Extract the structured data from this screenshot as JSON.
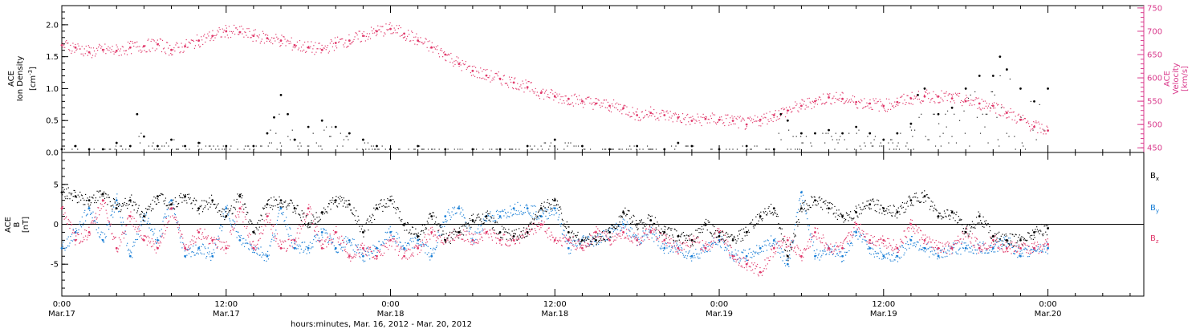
{
  "colors": {
    "black": "#000000",
    "density": "#000000",
    "velocity": "#e0386a",
    "bx": "#000000",
    "by": "#1a7fd6",
    "bz": "#e0386a",
    "right_axis": "#d93a8c"
  },
  "xaxis": {
    "title": "hours:minutes, Mar. 16, 2012 - Mar. 20, 2012",
    "ticks": [
      {
        "hour": 0,
        "time": "0:00",
        "date": "Mar.17"
      },
      {
        "hour": 12,
        "time": "12:00",
        "date": "Mar.17"
      },
      {
        "hour": 24,
        "time": "0:00",
        "date": "Mar.18"
      },
      {
        "hour": 36,
        "time": "12:00",
        "date": "Mar.18"
      },
      {
        "hour": 48,
        "time": "0:00",
        "date": "Mar.19"
      },
      {
        "hour": 60,
        "time": "12:00",
        "date": "Mar.19"
      },
      {
        "hour": 72,
        "time": "0:00",
        "date": "Mar.20"
      }
    ]
  },
  "chart_data": [
    {
      "type": "scatter",
      "panel": "plasma",
      "x_unit": "hours since Mar.17 0:00",
      "xlim": [
        0,
        79
      ],
      "left_axis": {
        "label_lines": [
          "ACE",
          "Ion Density"
        ],
        "unit_base": "[cm",
        "unit_sup": "-3",
        "unit_end": "]",
        "ylim": [
          0,
          2.3
        ],
        "ticks": [
          "0.0",
          "0.5",
          "1.0",
          "1.5",
          "2.0"
        ]
      },
      "right_axis": {
        "label_lines": [
          "ACE",
          "Velocity",
          "[km/s]"
        ],
        "ylim": [
          440,
          755
        ],
        "ticks": [
          "450",
          "500",
          "550",
          "600",
          "650",
          "700",
          "750"
        ]
      },
      "series": [
        {
          "key": "density",
          "axis": "left",
          "x": [
            0,
            1,
            2,
            3,
            4,
            5,
            5.5,
            6,
            7,
            8,
            9,
            10,
            12,
            14,
            15,
            15.5,
            16,
            16.5,
            17,
            18,
            19,
            20,
            21,
            22,
            23,
            24,
            26,
            28,
            30,
            32,
            34,
            36,
            38,
            40,
            42,
            44,
            45,
            46,
            48,
            50,
            52,
            52.5,
            53,
            54,
            55,
            56,
            57,
            58,
            59,
            60,
            61,
            62,
            62.5,
            63,
            64,
            65,
            66,
            67,
            68,
            68.5,
            69,
            70,
            71,
            72
          ],
          "y": [
            0.05,
            0.1,
            0.05,
            0.05,
            0.15,
            0.1,
            0.6,
            0.25,
            0.1,
            0.2,
            0.1,
            0.15,
            0.1,
            0.1,
            0.3,
            0.55,
            0.9,
            0.6,
            0.2,
            0.4,
            0.5,
            0.4,
            0.3,
            0.2,
            0.1,
            0.05,
            0.1,
            0.05,
            0.05,
            0.05,
            0.1,
            0.2,
            0.1,
            0.05,
            0.1,
            0.05,
            0.15,
            0.1,
            0.05,
            0.1,
            0.05,
            0.6,
            0.5,
            0.3,
            0.3,
            0.35,
            0.3,
            0.4,
            0.3,
            0.2,
            0.3,
            0.45,
            0.9,
            1.0,
            0.6,
            0.7,
            1.0,
            1.2,
            1.2,
            1.5,
            1.3,
            1.0,
            0.8,
            1.0
          ]
        },
        {
          "key": "velocity",
          "axis": "right",
          "x": [
            0,
            1,
            2,
            3,
            4,
            5,
            6,
            7,
            8,
            9,
            10,
            11,
            12,
            13,
            14,
            15,
            16,
            17,
            18,
            19,
            20,
            21,
            22,
            23,
            24,
            25,
            26,
            27,
            28,
            29,
            30,
            31,
            32,
            33,
            34,
            35,
            36,
            37,
            38,
            39,
            40,
            41,
            42,
            43,
            44,
            45,
            46,
            47,
            48,
            49,
            50,
            51,
            52,
            53,
            54,
            55,
            56,
            57,
            58,
            59,
            60,
            61,
            62,
            63,
            64,
            65,
            66,
            67,
            68,
            69,
            70,
            71,
            72
          ],
          "y": [
            670,
            665,
            655,
            660,
            658,
            665,
            668,
            672,
            660,
            668,
            680,
            690,
            700,
            698,
            690,
            685,
            680,
            670,
            665,
            660,
            675,
            680,
            690,
            700,
            705,
            695,
            680,
            665,
            650,
            630,
            615,
            605,
            598,
            590,
            580,
            568,
            560,
            555,
            550,
            545,
            540,
            535,
            520,
            525,
            520,
            515,
            508,
            512,
            510,
            508,
            500,
            510,
            520,
            530,
            540,
            550,
            558,
            555,
            548,
            545,
            540,
            548,
            556,
            560,
            560,
            556,
            550,
            545,
            540,
            525,
            510,
            495,
            487
          ]
        }
      ]
    },
    {
      "type": "scatter",
      "panel": "magnetic",
      "x_unit": "hours since Mar.17 0:00",
      "xlim": [
        0,
        79
      ],
      "ylim": [
        -9,
        9
      ],
      "zero_line": true,
      "left_axis": {
        "label_lines": [
          "ACE",
          "B",
          "[nT]"
        ],
        "ticks": [
          "-5",
          "0",
          "5"
        ]
      },
      "legend_placement": "right",
      "series": [
        {
          "key": "bx",
          "legend_base": "B",
          "legend_sub": "x",
          "x": [
            0,
            1,
            2,
            3,
            4,
            5,
            6,
            7,
            8,
            9,
            10,
            11,
            12,
            13,
            14,
            15,
            16,
            17,
            18,
            19,
            20,
            21,
            22,
            23,
            24,
            25,
            26,
            27,
            28,
            29,
            30,
            31,
            32,
            33,
            34,
            35,
            36,
            37,
            38,
            39,
            40,
            41,
            42,
            43,
            44,
            45,
            46,
            47,
            48,
            49,
            50,
            51,
            52,
            53,
            54,
            55,
            56,
            57,
            58,
            59,
            60,
            61,
            62,
            63,
            64,
            65,
            66,
            67,
            68,
            69,
            70,
            71,
            72
          ],
          "y": [
            4,
            3.5,
            3,
            3.8,
            2,
            3,
            1,
            3.5,
            2.5,
            3.5,
            2,
            3,
            1,
            3.5,
            -1,
            2.5,
            3,
            2,
            0,
            1.5,
            3,
            2.5,
            -1,
            2,
            3,
            0,
            -1.5,
            1,
            -2,
            -1,
            0.5,
            1,
            -1,
            -1.5,
            -1,
            2,
            3,
            -1,
            -2,
            -2,
            -1,
            1.5,
            0,
            0.5,
            -1,
            -1.5,
            -2,
            0,
            -1.5,
            -2,
            -1,
            1,
            2,
            -4,
            2,
            3,
            2,
            1,
            1.5,
            2.5,
            2,
            1.5,
            3,
            3.5,
            1,
            1.5,
            -1,
            1,
            -1.5,
            -2,
            -2,
            -1,
            -0.5
          ]
        },
        {
          "key": "by",
          "legend_base": "B",
          "legend_sub": "y",
          "x": [
            0,
            1,
            2,
            3,
            4,
            5,
            6,
            7,
            8,
            9,
            10,
            11,
            12,
            13,
            14,
            15,
            16,
            17,
            18,
            19,
            20,
            21,
            22,
            23,
            24,
            25,
            26,
            27,
            28,
            29,
            30,
            31,
            32,
            33,
            34,
            35,
            36,
            37,
            38,
            39,
            40,
            41,
            42,
            43,
            44,
            45,
            46,
            47,
            48,
            49,
            50,
            51,
            52,
            53,
            54,
            55,
            56,
            57,
            58,
            59,
            60,
            61,
            62,
            63,
            64,
            65,
            66,
            67,
            68,
            69,
            70,
            71,
            72
          ],
          "y": [
            -3,
            -1,
            2,
            -2,
            3,
            -4,
            1,
            -2,
            3,
            -4,
            -3,
            -4,
            2,
            -2,
            -3,
            -4,
            2,
            -3,
            -3,
            -1,
            -3,
            -2,
            -4,
            -3,
            -1,
            -3,
            -2,
            -4,
            1,
            2,
            -2,
            1,
            1,
            2,
            2,
            1,
            2,
            -3,
            -2,
            -2,
            -1,
            0,
            -2,
            -1,
            -3,
            -3,
            -4,
            -3,
            -2,
            -4,
            -4,
            -3,
            -2,
            -5,
            4,
            -4,
            -3,
            -4,
            -1,
            -3,
            -4,
            -4,
            -2,
            -3,
            -4,
            -3,
            -3,
            -3,
            -3,
            -2,
            -4,
            -3,
            -3
          ]
        },
        {
          "key": "bz",
          "legend_base": "B",
          "legend_sub": "z",
          "x": [
            0,
            1,
            2,
            3,
            4,
            5,
            6,
            7,
            8,
            9,
            10,
            11,
            12,
            13,
            14,
            15,
            16,
            17,
            18,
            19,
            20,
            21,
            22,
            23,
            24,
            25,
            26,
            27,
            28,
            29,
            30,
            31,
            32,
            33,
            34,
            35,
            36,
            37,
            38,
            39,
            40,
            41,
            42,
            43,
            44,
            45,
            46,
            47,
            48,
            49,
            50,
            51,
            52,
            53,
            54,
            55,
            56,
            57,
            58,
            59,
            60,
            61,
            62,
            63,
            64,
            65,
            66,
            67,
            68,
            69,
            70,
            71,
            72
          ],
          "y": [
            2,
            -2,
            -1,
            3,
            -3,
            1,
            -2,
            -3,
            2,
            -3,
            -1,
            -2,
            -3,
            2,
            -3,
            1,
            -3,
            -2,
            2,
            -3,
            -1,
            -4,
            -3,
            -4,
            -2,
            -4,
            -3,
            -1,
            -2,
            -1,
            -2,
            -1,
            -2,
            -2,
            -1,
            0,
            -2,
            -2,
            -3,
            -1,
            -2,
            -1,
            -2,
            -1,
            -2,
            -3,
            -2,
            -3,
            -1,
            -4,
            -5,
            -6,
            -3,
            -2,
            -4,
            -1,
            -3,
            -3,
            0,
            -2,
            -2,
            -3,
            0,
            -2,
            -3,
            -3,
            -1,
            -3,
            -2,
            -3,
            -3,
            -3,
            -2.5
          ]
        }
      ]
    }
  ]
}
